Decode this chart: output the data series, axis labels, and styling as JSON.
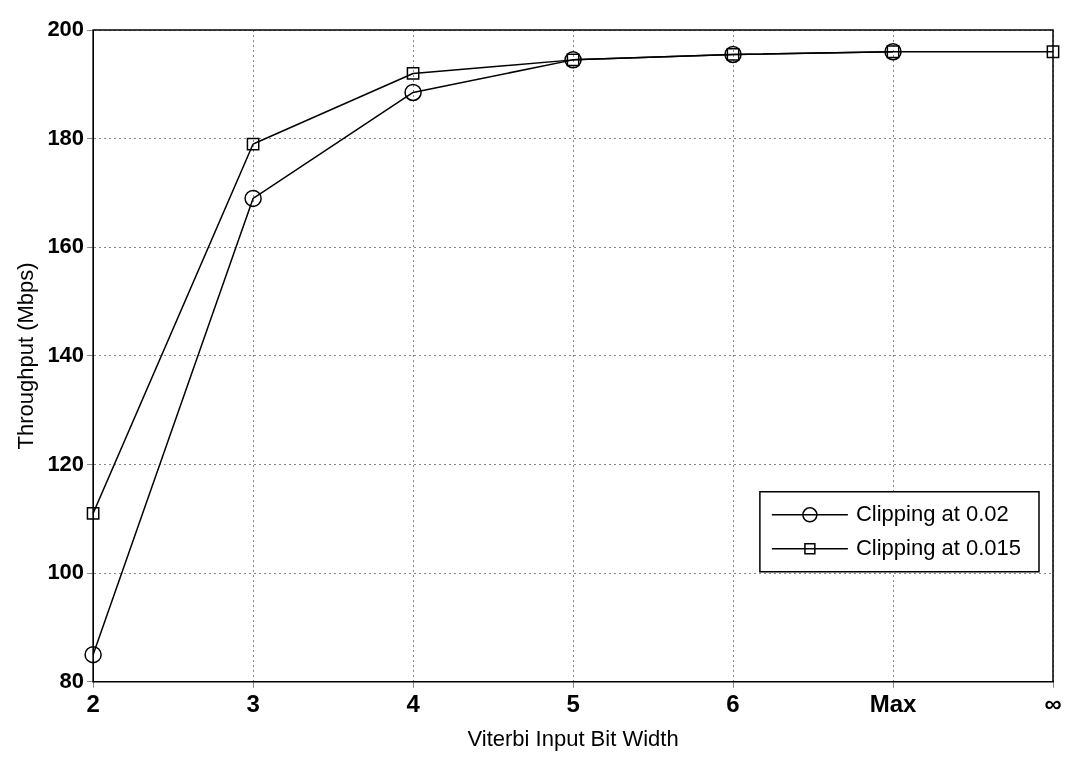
{
  "chart_data": {
    "type": "line",
    "xlabel": "Viterbi Input Bit Width",
    "ylabel": "Throughput (Mbps)",
    "categories": [
      "2",
      "3",
      "4",
      "5",
      "6",
      "Max",
      "∞"
    ],
    "series": [
      {
        "name": "Clipping at 0.02",
        "color": "#000000",
        "marker": "circle",
        "values": [
          85,
          169,
          188.5,
          194.5,
          195.5,
          196,
          null
        ]
      },
      {
        "name": "Clipping at 0.015",
        "color": "#000000",
        "marker": "square",
        "values": [
          111,
          179,
          192,
          194.5,
          195.5,
          196,
          196
        ]
      }
    ],
    "ylim": [
      80,
      200
    ],
    "yticks": [
      80,
      100,
      120,
      140,
      160,
      180,
      200
    ],
    "grid": true,
    "legend": "bottom right",
    "line_style": "solid"
  }
}
